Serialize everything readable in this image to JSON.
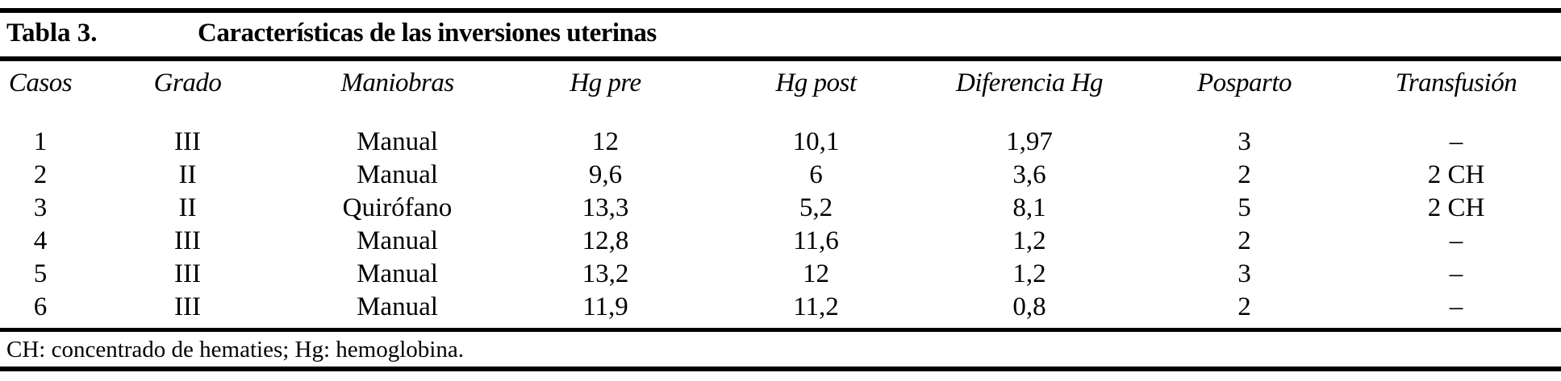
{
  "title": {
    "label": "Tabla 3.",
    "caption": "Características de las inversiones uterinas"
  },
  "table": {
    "columns": [
      "Casos",
      "Grado",
      "Maniobras",
      "Hg pre",
      "Hg post",
      "Diferencia Hg",
      "Posparto",
      "Transfusión"
    ],
    "rows": [
      [
        "1",
        "III",
        "Manual",
        "12",
        "10,1",
        "1,97",
        "3",
        "–"
      ],
      [
        "2",
        "II",
        "Manual",
        "9,6",
        "6",
        "3,6",
        "2",
        "2 CH"
      ],
      [
        "3",
        "II",
        "Quirófano",
        "13,3",
        "5,2",
        "8,1",
        "5",
        "2 CH"
      ],
      [
        "4",
        "III",
        "Manual",
        "12,8",
        "11,6",
        "1,2",
        "2",
        "–"
      ],
      [
        "5",
        "III",
        "Manual",
        "13,2",
        "12",
        "1,2",
        "3",
        "–"
      ],
      [
        "6",
        "III",
        "Manual",
        "11,9",
        "11,2",
        "0,8",
        "2",
        "–"
      ]
    ],
    "footnote": "CH: concentrado de hematies; Hg: hemoglobina."
  },
  "colors": {
    "text": "#000000",
    "background": "#ffffff",
    "rule": "#000000"
  }
}
